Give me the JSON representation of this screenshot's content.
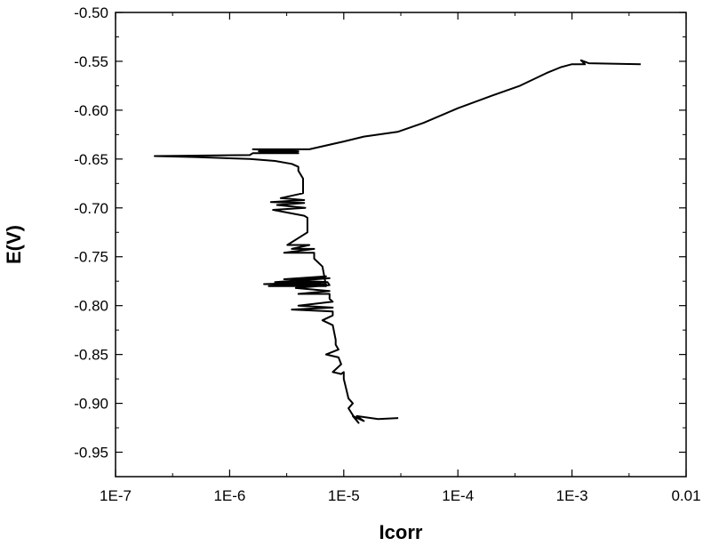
{
  "chart_data": {
    "type": "line",
    "title": "",
    "xlabel": "Icorr",
    "ylabel": "E(V)",
    "xscale": "log",
    "xlim": [
      1e-07,
      0.01
    ],
    "ylim": [
      -0.975,
      -0.5
    ],
    "x_ticks": [
      {
        "value": 1e-07,
        "label": "1E-7"
      },
      {
        "value": 1e-06,
        "label": "1E-6"
      },
      {
        "value": 1e-05,
        "label": "1E-5"
      },
      {
        "value": 0.0001,
        "label": "1E-4"
      },
      {
        "value": 0.001,
        "label": "1E-3"
      },
      {
        "value": 0.01,
        "label": "0.01"
      }
    ],
    "y_ticks": [
      {
        "value": -0.5,
        "label": "-0.50"
      },
      {
        "value": -0.55,
        "label": "-0.55"
      },
      {
        "value": -0.6,
        "label": "-0.60"
      },
      {
        "value": -0.65,
        "label": "-0.65"
      },
      {
        "value": -0.7,
        "label": "-0.70"
      },
      {
        "value": -0.75,
        "label": "-0.75"
      },
      {
        "value": -0.8,
        "label": "-0.80"
      },
      {
        "value": -0.85,
        "label": "-0.85"
      },
      {
        "value": -0.9,
        "label": "-0.90"
      },
      {
        "value": -0.95,
        "label": "-0.95"
      }
    ],
    "grid": false,
    "legend": "none",
    "line_color": "#000000",
    "series": [
      {
        "x": [
          3e-05,
          2e-05,
          1.3e-05,
          1.5e-05,
          1.2e-05,
          1.35e-05,
          1.2e-05,
          1.1e-05,
          1.2e-05,
          1.1e-05,
          1.05e-05,
          1e-05,
          1e-05,
          9.5e-06,
          8e-06,
          9.5e-06,
          9e-06,
          7e-06,
          9e-06,
          8.5e-06,
          8.5e-06,
          8e-06,
          6.5e-06,
          8e-06,
          8e-06,
          3.5e-06,
          8e-06,
          4e-06,
          8e-06,
          7.5e-06,
          7.5e-06,
          4e-06,
          7.5e-06,
          3.8e-06,
          7.5e-06,
          7.2e-06,
          3.5e-06,
          7e-06,
          3e-06,
          7.5e-06,
          2.5e-06,
          7e-06,
          2e-06,
          7e-06,
          2.2e-06,
          7e-06,
          6.5e-06,
          5.5e-06,
          5.5e-06,
          3e-06,
          5.5e-06,
          3.5e-06,
          5e-06,
          3.2e-06,
          4.8e-06,
          4.8e-06,
          4.5e-06,
          2.4e-06,
          4.6e-06,
          2.6e-06,
          4.5e-06,
          2.3e-06,
          4.5e-06,
          2.8e-06,
          4.4e-06,
          4.4e-06,
          4e-06,
          4e-06,
          3.5e-06,
          2.5e-06,
          1.5e-06,
          5e-07,
          2.2e-07,
          1.5e-06,
          1.6e-06,
          4e-06,
          1.8e-06,
          4e-06,
          1.6e-06,
          5e-06,
          1e-05,
          1.5e-05,
          3e-05,
          5e-05,
          0.0001,
          0.0002,
          0.00035,
          0.0006,
          0.0008,
          0.001,
          0.0013,
          0.0012,
          0.0014,
          0.004
        ],
        "y": [
          -0.915,
          -0.916,
          -0.913,
          -0.918,
          -0.913,
          -0.92,
          -0.912,
          -0.905,
          -0.9,
          -0.895,
          -0.885,
          -0.875,
          -0.868,
          -0.87,
          -0.868,
          -0.86,
          -0.853,
          -0.85,
          -0.845,
          -0.84,
          -0.835,
          -0.82,
          -0.815,
          -0.81,
          -0.806,
          -0.804,
          -0.802,
          -0.8,
          -0.796,
          -0.793,
          -0.788,
          -0.788,
          -0.785,
          -0.782,
          -0.779,
          -0.776,
          -0.774,
          -0.77,
          -0.773,
          -0.772,
          -0.776,
          -0.776,
          -0.778,
          -0.778,
          -0.78,
          -0.78,
          -0.76,
          -0.752,
          -0.746,
          -0.746,
          -0.742,
          -0.742,
          -0.738,
          -0.738,
          -0.725,
          -0.71,
          -0.708,
          -0.702,
          -0.7,
          -0.697,
          -0.695,
          -0.694,
          -0.692,
          -0.69,
          -0.685,
          -0.67,
          -0.662,
          -0.658,
          -0.655,
          -0.652,
          -0.65,
          -0.648,
          -0.647,
          -0.646,
          -0.644,
          -0.644,
          -0.642,
          -0.642,
          -0.64,
          -0.64,
          -0.632,
          -0.627,
          -0.622,
          -0.613,
          -0.598,
          -0.585,
          -0.575,
          -0.562,
          -0.556,
          -0.553,
          -0.553,
          -0.549,
          -0.552,
          -0.553
        ]
      }
    ]
  }
}
